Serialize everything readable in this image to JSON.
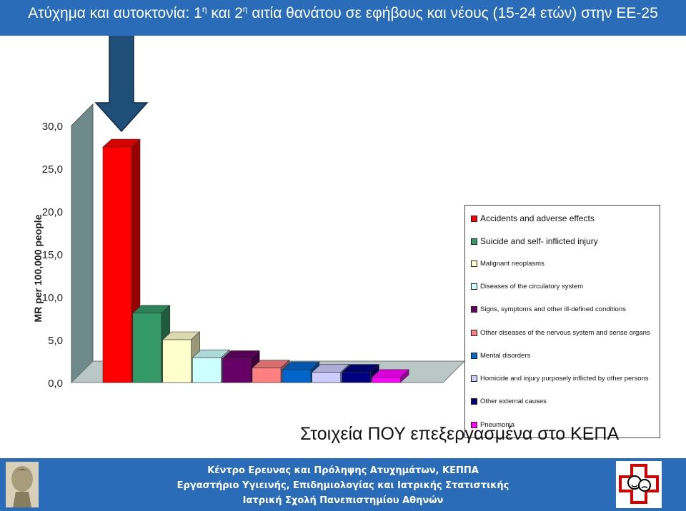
{
  "title": {
    "prefix": "Ατύχημα και αυτοκτονία: 1",
    "sup1": "η",
    "mid": " και 2",
    "sup2": "η",
    "suffix": " αιτία θανάτου σε εφήβους και νέους (15-24 ετών) στην ΕΕ-25"
  },
  "source_note": "Στοιχεία ΠΟΥ επεξεργασμένα στο ΚΕΠΑ",
  "footer": {
    "line1": "Κέντρο Ερευνας και Πρόληψης Ατυχημάτων, ΚΕΠΠΑ",
    "line2": "Εργαστήριο Υγιεινής, Επιδημιολογίας και Ιατρικής Στατιστικής",
    "line3": "Ιατρική Σχολή Πανεπιστημίου Αθηνών"
  },
  "chart_data": {
    "type": "bar",
    "ylabel": "MR per 100,000 people",
    "ylim": [
      0,
      30
    ],
    "ytick_labels": [
      "0,0",
      "5,0",
      "10,0",
      "15,0",
      "20,0",
      "25,0",
      "30,0"
    ],
    "yticks": [
      0,
      5,
      10,
      15,
      20,
      25,
      30
    ],
    "categories": [
      "Accidents and adverse effects",
      "Suicide and self- inflicted injury",
      "Malignant neoplasms",
      "Diseases of the circulatory system",
      "Signs, symptoms and other ill-defined conditions",
      "Other diseases of the nervous system and sense organs",
      "Mental disorders",
      "Homicide and injury purposely inflicted by other persons",
      "Other external causes",
      "Pneumonia"
    ],
    "values": [
      27.5,
      8.1,
      5.0,
      2.9,
      2.8,
      1.7,
      1.5,
      1.2,
      1.2,
      0.6
    ],
    "colors": [
      "#ff0000",
      "#339966",
      "#ffffcc",
      "#ccffff",
      "#660066",
      "#ff8080",
      "#0066cc",
      "#ccccff",
      "#000080",
      "#ff00ff"
    ],
    "legend_position": "right",
    "highlight_arrow_on": "Accidents and adverse effects"
  }
}
